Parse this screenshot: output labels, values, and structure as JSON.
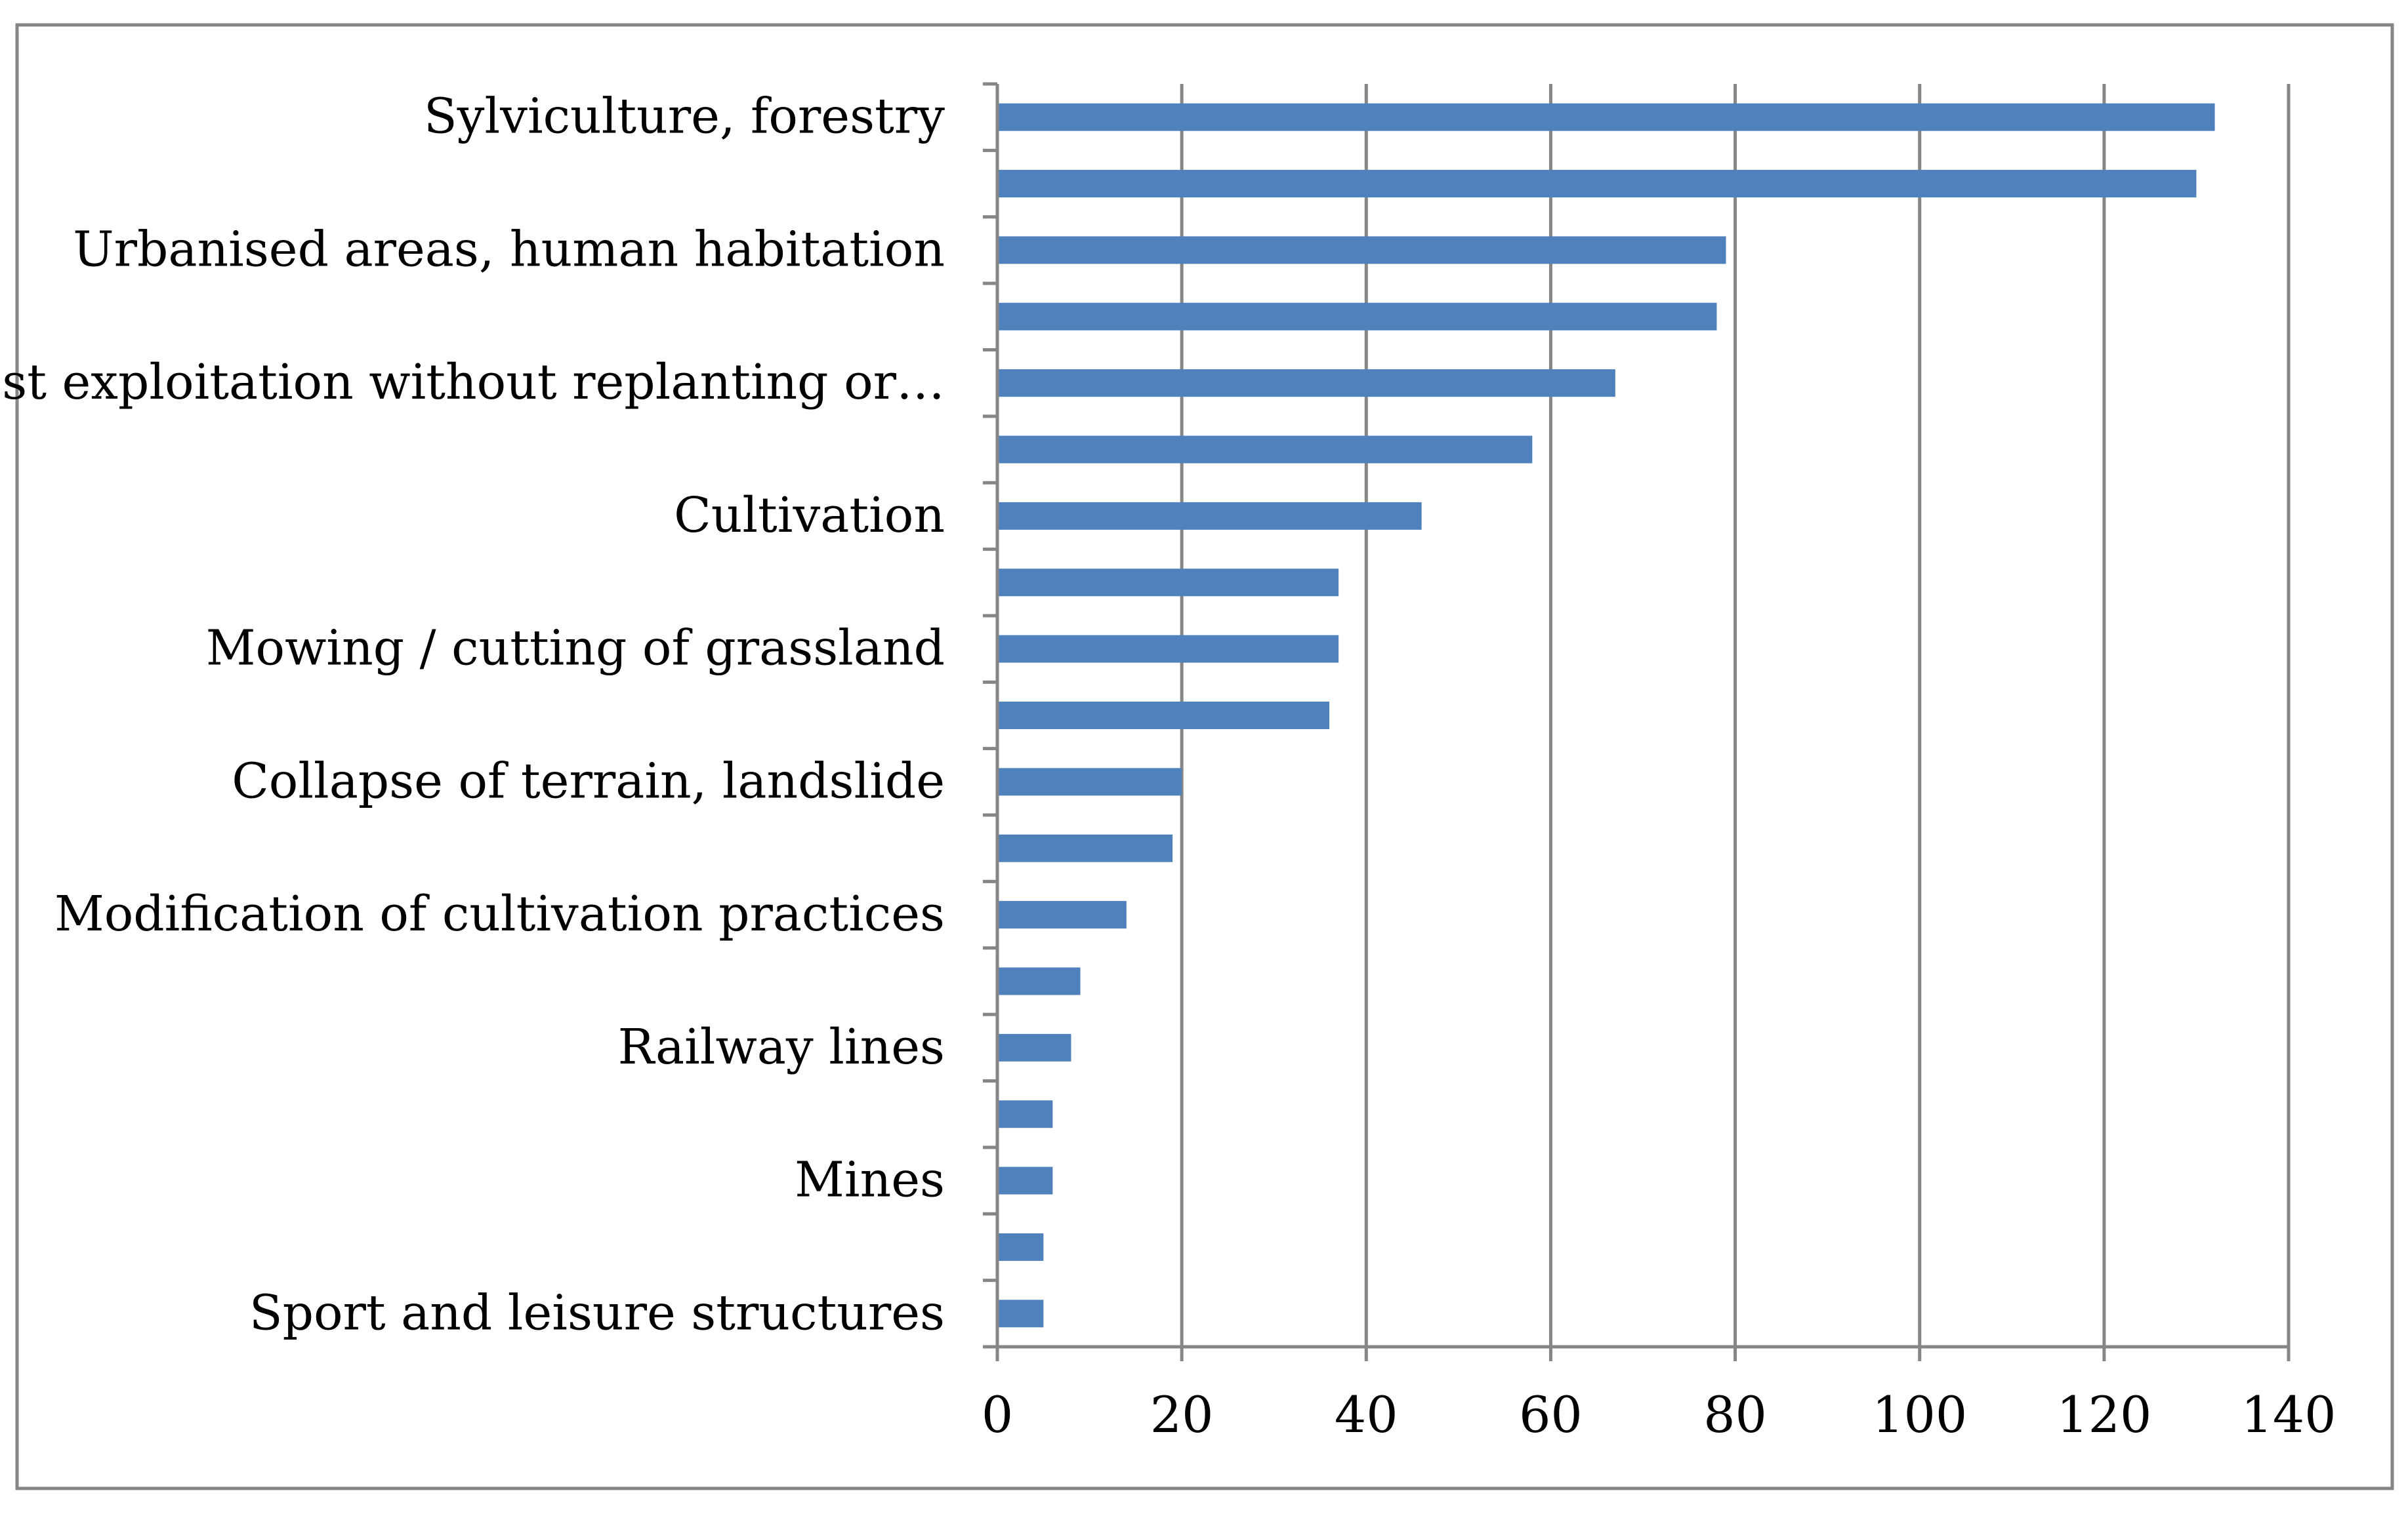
{
  "chart_data": {
    "type": "bar",
    "orientation": "horizontal",
    "title": "",
    "xlabel": "",
    "ylabel": "",
    "categories": [
      "Sylviculture, forestry",
      "",
      "Urbanised areas, human habitation",
      "",
      "Forest exploitation without replanting or…",
      "",
      "Cultivation",
      "",
      "Mowing / cutting of grassland",
      "",
      "Collapse of terrain, landslide",
      "",
      "Modification of cultivation practices",
      "",
      "Railway lines",
      "",
      "Mines",
      "",
      "Sport and leisure structures"
    ],
    "values": [
      132,
      130,
      79,
      78,
      67,
      58,
      46,
      37,
      37,
      36,
      20,
      19,
      14,
      9,
      8,
      6,
      6,
      5,
      5
    ],
    "xlim": [
      0,
      140
    ],
    "xticks": [
      0,
      20,
      40,
      60,
      80,
      100,
      120,
      140
    ],
    "grid": true,
    "legend": "none",
    "colors": {
      "bar": "#4f81bd",
      "grid": "#868686",
      "axis": "#868686",
      "frame": "#868686"
    }
  }
}
